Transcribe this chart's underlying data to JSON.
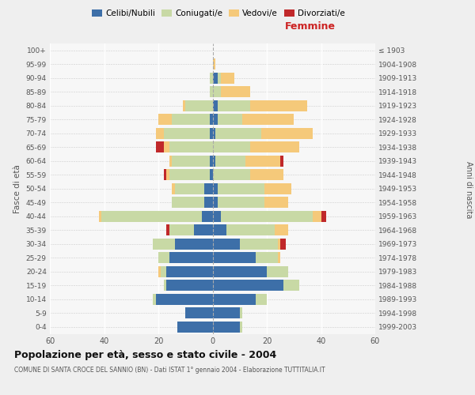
{
  "age_groups": [
    "0-4",
    "5-9",
    "10-14",
    "15-19",
    "20-24",
    "25-29",
    "30-34",
    "35-39",
    "40-44",
    "45-49",
    "50-54",
    "55-59",
    "60-64",
    "65-69",
    "70-74",
    "75-79",
    "80-84",
    "85-89",
    "90-94",
    "95-99",
    "100+"
  ],
  "birth_years": [
    "1999-2003",
    "1994-1998",
    "1989-1993",
    "1984-1988",
    "1979-1983",
    "1974-1978",
    "1969-1973",
    "1964-1968",
    "1959-1963",
    "1954-1958",
    "1949-1953",
    "1944-1948",
    "1939-1943",
    "1934-1938",
    "1929-1933",
    "1924-1928",
    "1919-1923",
    "1914-1918",
    "1909-1913",
    "1904-1908",
    "≤ 1903"
  ],
  "males": {
    "celibi": [
      13,
      10,
      21,
      17,
      17,
      16,
      14,
      7,
      4,
      3,
      3,
      1,
      1,
      0,
      1,
      1,
      0,
      0,
      0,
      0,
      0
    ],
    "coniugati": [
      0,
      0,
      1,
      1,
      2,
      4,
      8,
      9,
      37,
      12,
      11,
      15,
      14,
      16,
      17,
      14,
      10,
      1,
      1,
      0,
      0
    ],
    "vedovi": [
      0,
      0,
      0,
      0,
      1,
      0,
      0,
      0,
      1,
      0,
      1,
      1,
      1,
      2,
      3,
      5,
      1,
      0,
      0,
      0,
      0
    ],
    "divorziati": [
      0,
      0,
      0,
      0,
      0,
      0,
      0,
      1,
      0,
      0,
      0,
      1,
      0,
      3,
      0,
      0,
      0,
      0,
      0,
      0,
      0
    ]
  },
  "females": {
    "nubili": [
      10,
      10,
      16,
      26,
      20,
      16,
      10,
      5,
      3,
      2,
      2,
      0,
      1,
      0,
      1,
      2,
      2,
      0,
      2,
      0,
      0
    ],
    "coniugate": [
      1,
      1,
      4,
      6,
      8,
      8,
      14,
      18,
      34,
      17,
      17,
      14,
      11,
      14,
      17,
      9,
      12,
      3,
      1,
      0,
      0
    ],
    "vedove": [
      0,
      0,
      0,
      0,
      0,
      1,
      1,
      5,
      3,
      9,
      10,
      12,
      13,
      18,
      19,
      19,
      21,
      11,
      5,
      1,
      0
    ],
    "divorziate": [
      0,
      0,
      0,
      0,
      0,
      0,
      2,
      0,
      2,
      0,
      0,
      0,
      1,
      0,
      0,
      0,
      0,
      0,
      0,
      0,
      0
    ]
  },
  "colors": {
    "celibi_nubili": "#3d6fa8",
    "coniugati": "#c8d9a5",
    "vedovi": "#f5c97a",
    "divorziati": "#c0282a"
  },
  "xlim": 60,
  "title": "Popolazione per età, sesso e stato civile - 2004",
  "subtitle": "COMUNE DI SANTA CROCE DEL SANNIO (BN) - Dati ISTAT 1° gennaio 2004 - Elaborazione TUTTITALIA.IT",
  "bg_color": "#efefef",
  "plot_bg": "#f7f7f7"
}
